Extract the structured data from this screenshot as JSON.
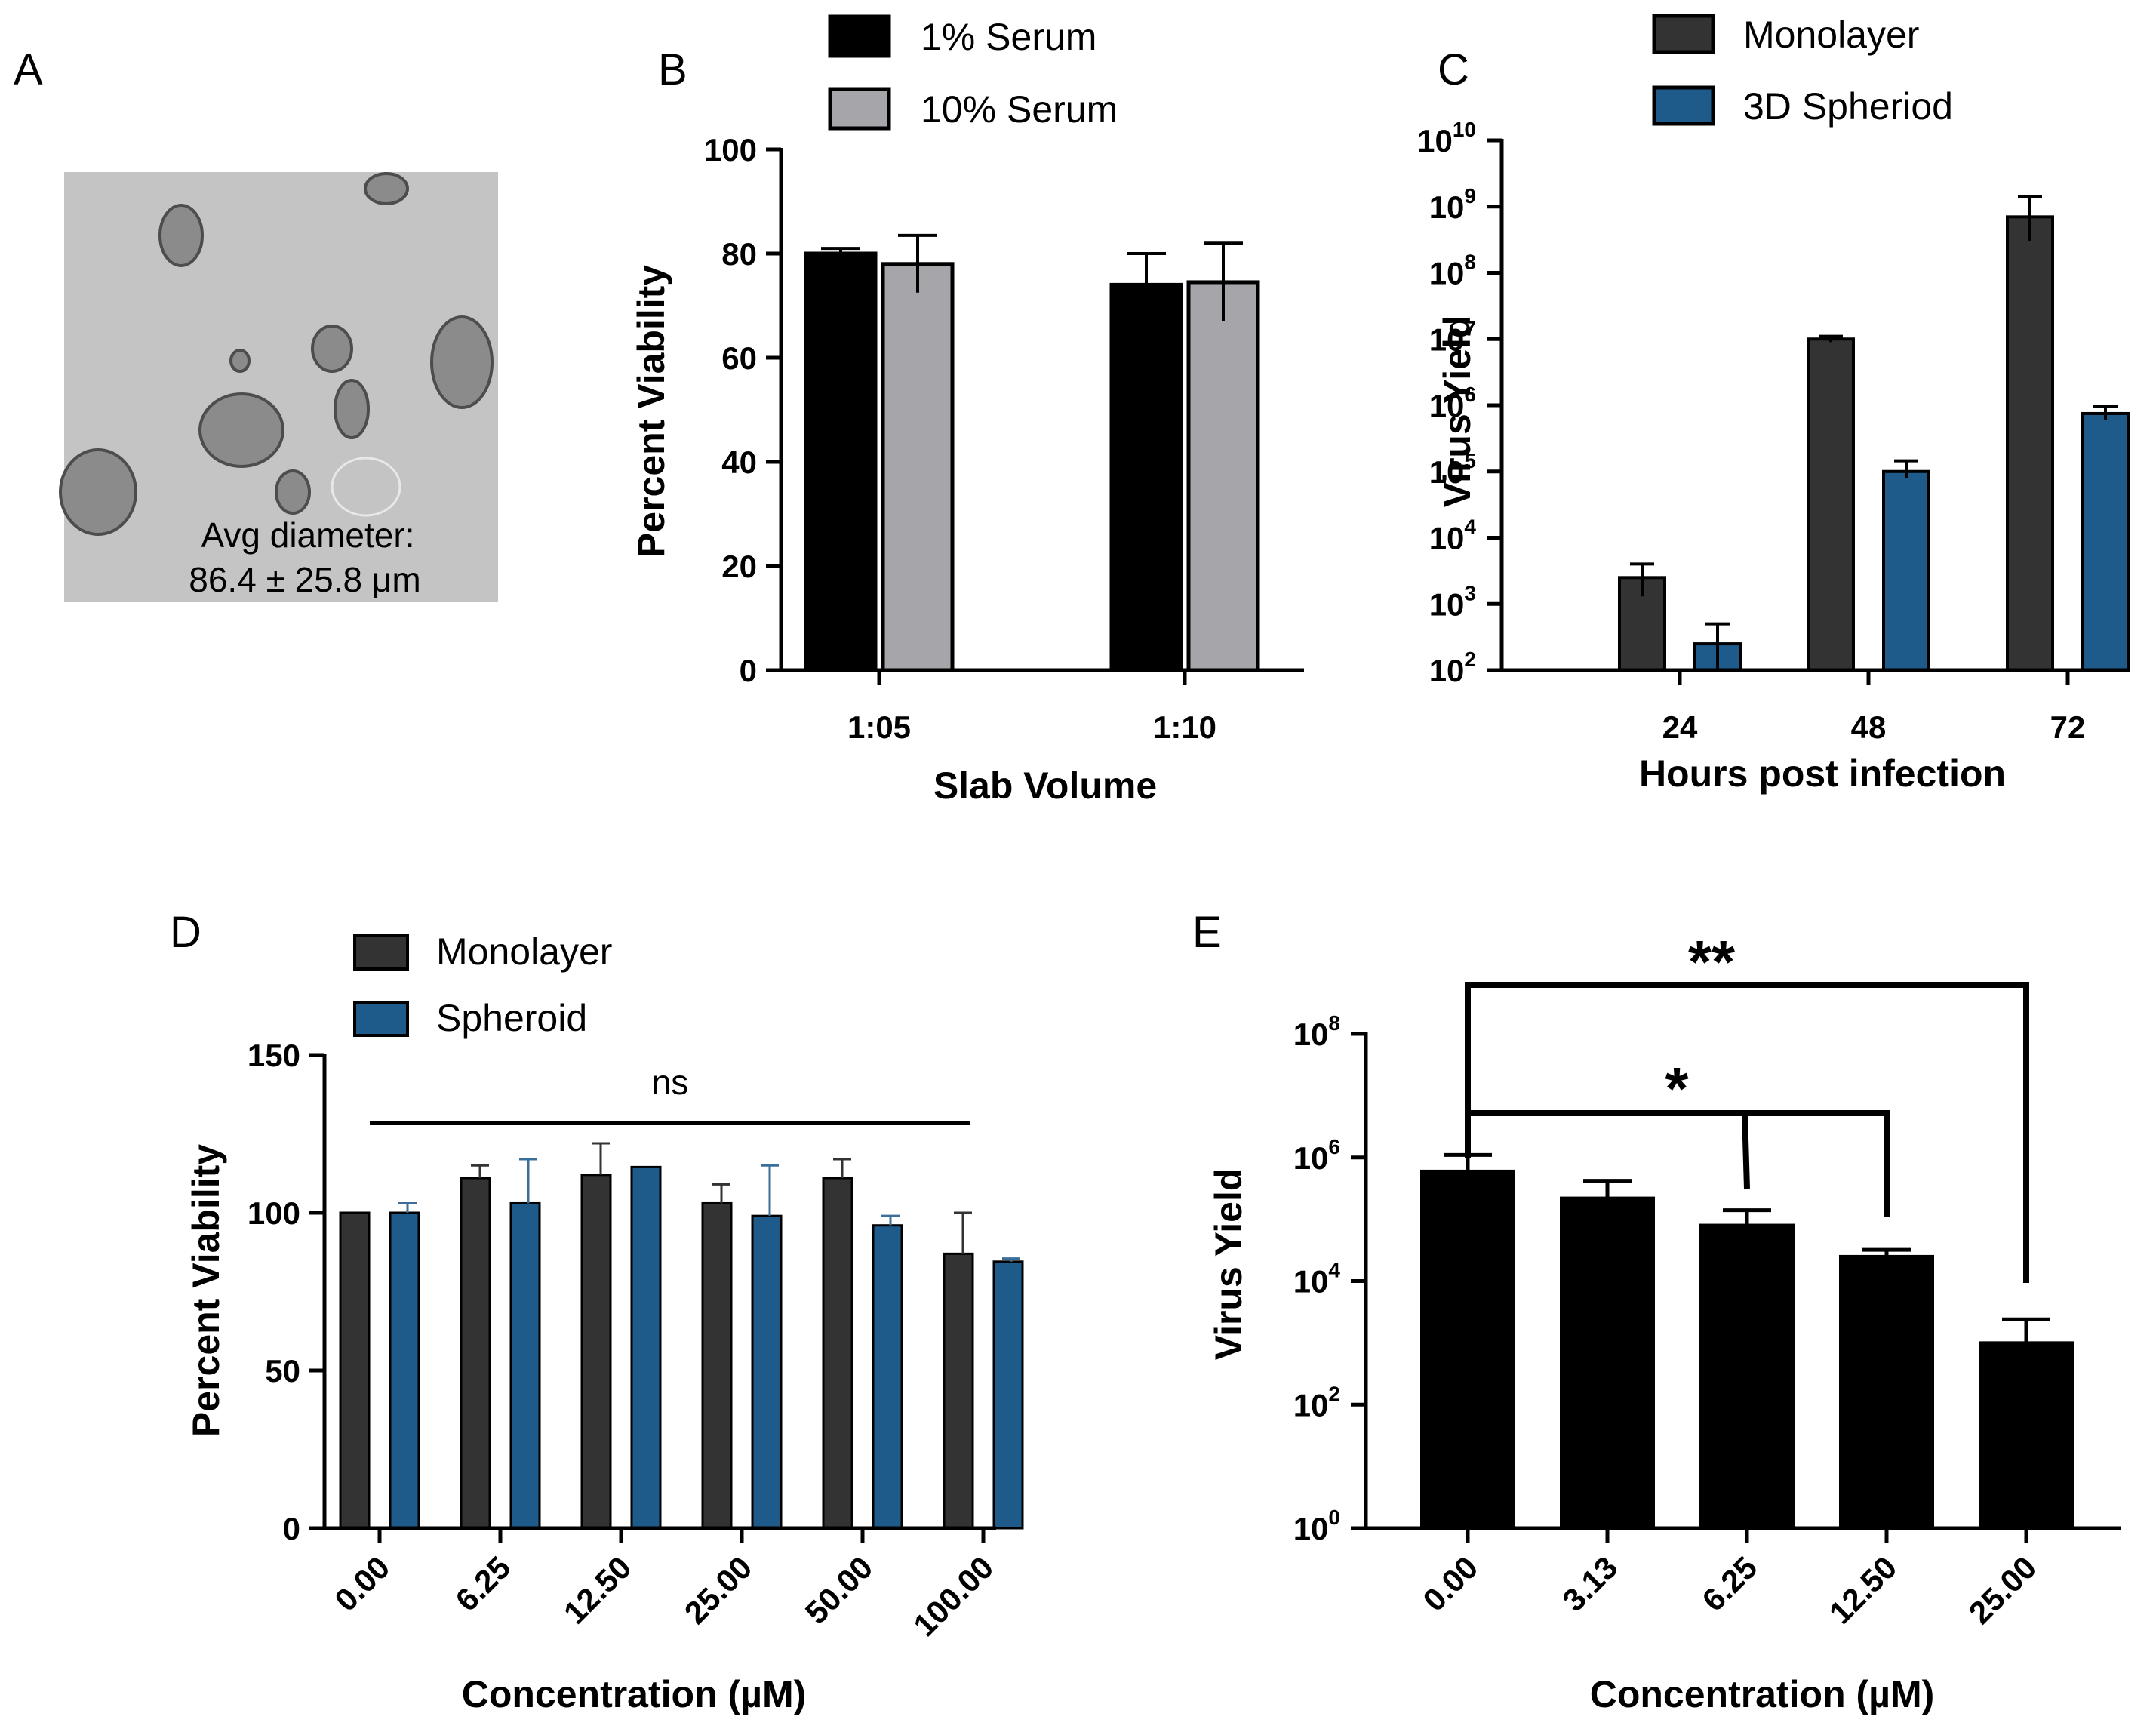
{
  "panels": {
    "A": {
      "letter": "A",
      "caption_line1": "Avg diameter:",
      "caption_line2": "86.4 ± 25.8 μm"
    },
    "B": {
      "letter": "B"
    },
    "C": {
      "letter": "C"
    },
    "D": {
      "letter": "D"
    },
    "E": {
      "letter": "E"
    }
  },
  "colors": {
    "black": "#000000",
    "gray": "#a5a5aa",
    "dark": "#333333",
    "blue": "#1e5a8a",
    "micro_bg": "#c4c4c4"
  },
  "chart_data": [
    {
      "id": "B",
      "type": "bar",
      "title": "",
      "xlabel": "Slab Volume",
      "ylabel": "Percent Viability",
      "categories": [
        "1:05",
        "1:10"
      ],
      "ylim": [
        0,
        100
      ],
      "yticks": [
        0,
        20,
        40,
        60,
        80,
        100
      ],
      "yticklabels": [
        "0",
        "20",
        "40",
        "60",
        "80",
        "100"
      ],
      "series": [
        {
          "name": "1% Serum",
          "color": "#000000",
          "values": [
            80,
            74
          ],
          "errors": [
            1,
            6
          ]
        },
        {
          "name": "10% Serum",
          "color": "#a5a5aa",
          "values": [
            78,
            74.5
          ],
          "errors": [
            5.5,
            7.5
          ]
        }
      ],
      "legend_position": "top"
    },
    {
      "id": "C",
      "type": "bar",
      "yscale": "log",
      "xlabel": "Hours post infection",
      "ylabel": "Virus Yield",
      "categories": [
        "24",
        "48",
        "72"
      ],
      "ylim_exp": [
        2,
        10
      ],
      "ytick_exps": [
        2,
        3,
        4,
        5,
        6,
        7,
        8,
        9,
        10
      ],
      "series": [
        {
          "name": "Monolayer",
          "color": "#333333",
          "values": [
            2500,
            10000000,
            700000000
          ],
          "errors_up": [
            4000,
            11000000,
            1400000000
          ],
          "errors_down": [
            1300,
            9000000,
            300000000
          ]
        },
        {
          "name": "3D Spheriod",
          "color": "#1e5a8a",
          "values": [
            250,
            100000,
            750000
          ],
          "errors_up": [
            500,
            145000,
            950000
          ],
          "errors_down": [
            100,
            80000,
            600000
          ]
        }
      ],
      "legend_position": "top"
    },
    {
      "id": "D",
      "type": "bar",
      "xlabel": "Concentration (µM)",
      "ylabel": "Percent Viability",
      "categories": [
        "0.00",
        "6.25",
        "12.50",
        "25.00",
        "50.00",
        "100.00"
      ],
      "ylim": [
        0,
        150
      ],
      "yticks": [
        0,
        50,
        100,
        150
      ],
      "yticklabels": [
        "0",
        "50",
        "100",
        "150"
      ],
      "series": [
        {
          "name": "Monolayer",
          "color": "#333333",
          "values": [
            100,
            111,
            112,
            103,
            111,
            87
          ],
          "errors": [
            0,
            4,
            10,
            6,
            6,
            13
          ]
        },
        {
          "name": "Spheroid",
          "color": "#1e5a8a",
          "values": [
            100,
            103,
            114.5,
            99,
            96,
            84.5
          ],
          "errors": [
            3,
            14,
            0,
            16,
            3,
            1
          ]
        }
      ],
      "annotation": "ns",
      "legend_position": "top-left"
    },
    {
      "id": "E",
      "type": "bar",
      "yscale": "log",
      "xlabel": "Concentration (µM)",
      "ylabel": "Virus Yield",
      "categories": [
        "0.00",
        "3.13",
        "6.25",
        "12.50",
        "25.00"
      ],
      "ylim_exp": [
        0,
        8
      ],
      "ytick_exps": [
        0,
        2,
        4,
        6,
        8
      ],
      "series": [
        {
          "name": "Virus Yield",
          "color": "#000000",
          "values": [
            600000,
            220000,
            80000,
            25000,
            1000
          ],
          "errors_up": [
            1100000,
            420000,
            140000,
            32000,
            2400
          ]
        }
      ],
      "significance": [
        {
          "label": "*",
          "from": "0.00",
          "to": [
            "6.25",
            "12.50"
          ]
        },
        {
          "label": "**",
          "from": "0.00",
          "to": [
            "25.00"
          ]
        }
      ]
    }
  ]
}
